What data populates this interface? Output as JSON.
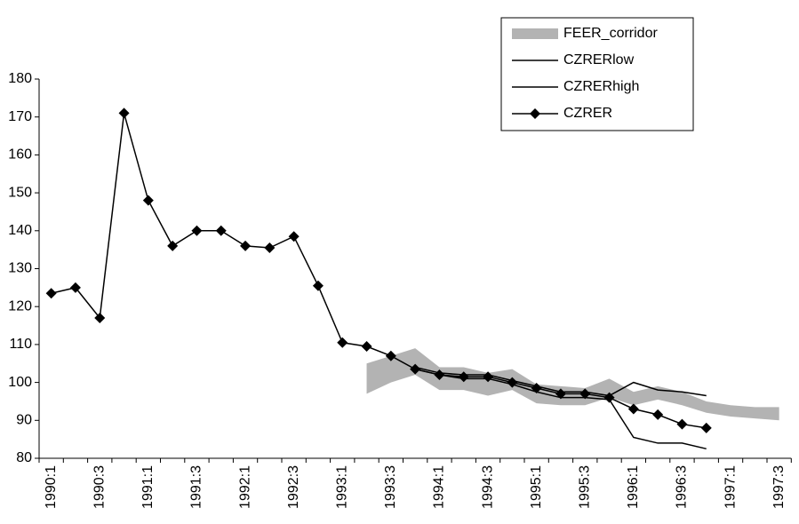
{
  "chart_data": {
    "type": "line",
    "categories": [
      "1990:1",
      null,
      "1990:3",
      null,
      "1991:1",
      null,
      "1991:3",
      null,
      "1992:1",
      null,
      "1992:3",
      null,
      "1993:1",
      null,
      "1993:3",
      null,
      "1994:1",
      null,
      "1994:3",
      null,
      "1995:1",
      null,
      "1995:3",
      null,
      "1996:1",
      null,
      "1996:3",
      null,
      "1997:1",
      null,
      "1997:3"
    ],
    "ylim": [
      80,
      180
    ],
    "yticks": [
      80,
      90,
      100,
      110,
      120,
      130,
      140,
      150,
      160,
      170,
      180
    ],
    "grid": false,
    "legend": "upper right",
    "series": [
      {
        "name": "FEER_corridor",
        "color": "#b3b3b3",
        "low": [
          null,
          null,
          null,
          null,
          null,
          null,
          null,
          null,
          null,
          null,
          null,
          null,
          null,
          97,
          100,
          102,
          98,
          98,
          96.5,
          98,
          94.5,
          94,
          94,
          96,
          94,
          95.5,
          94,
          92,
          91,
          90.5,
          90
        ],
        "high": [
          null,
          null,
          null,
          null,
          null,
          null,
          null,
          null,
          null,
          null,
          null,
          null,
          null,
          105,
          107,
          109,
          104,
          104,
          102.5,
          103.5,
          99.5,
          99,
          98.5,
          101,
          97.5,
          99,
          97.5,
          95,
          94,
          93.5,
          93.5
        ]
      },
      {
        "name": "CZRERlow",
        "color": "#000000",
        "values": [
          null,
          null,
          null,
          null,
          null,
          null,
          null,
          null,
          null,
          null,
          null,
          null,
          null,
          null,
          null,
          103.5,
          102,
          101,
          101,
          99.5,
          97.5,
          96,
          96,
          95.5,
          85.5,
          84,
          84,
          82.5,
          null,
          null,
          null
        ]
      },
      {
        "name": "CZRERhigh",
        "color": "#000000",
        "values": [
          null,
          null,
          null,
          null,
          null,
          null,
          null,
          null,
          null,
          null,
          null,
          null,
          null,
          null,
          null,
          104,
          102.5,
          102,
          102,
          100.5,
          99,
          97.5,
          97.5,
          96.5,
          100,
          98,
          97.5,
          96.5,
          null,
          null,
          null
        ]
      },
      {
        "name": "CZRER",
        "color": "#000000",
        "marker": "diamond",
        "values": [
          123.5,
          125,
          117,
          171,
          148,
          136,
          140,
          140,
          136,
          135.5,
          138.5,
          125.5,
          110.5,
          109.5,
          107,
          103.5,
          102,
          101.5,
          101.5,
          100,
          98.5,
          97,
          97,
          96,
          93,
          91.5,
          89,
          88,
          null,
          null,
          null
        ]
      }
    ]
  }
}
